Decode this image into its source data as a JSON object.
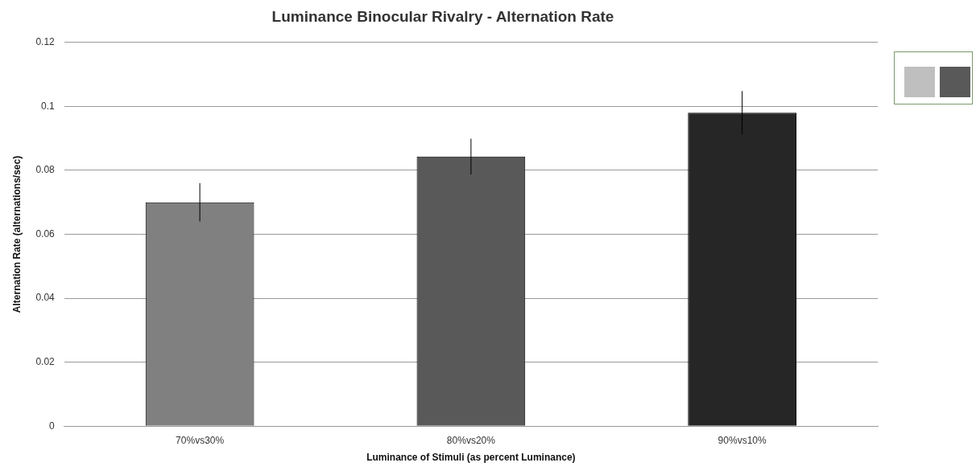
{
  "chart_data": {
    "type": "bar",
    "title": "Luminance Binocular Rivalry - Alternation Rate",
    "xlabel": "Luminance of Stimuli (as percent Luminance)",
    "ylabel": "Alternation Rate (alternations/sec)",
    "categories": [
      "70%vs30%",
      "80%vs20%",
      "90%vs10%"
    ],
    "values": [
      0.07,
      0.0843,
      0.098
    ],
    "colors": [
      "#808080",
      "#595959",
      "#262626"
    ],
    "errors": [
      0.006,
      0.0056,
      0.0068
    ],
    "ylim": [
      0,
      0.12
    ],
    "yticks": [
      0,
      0.02,
      0.04,
      0.06,
      0.08,
      0.1,
      0.12
    ],
    "grid": "y",
    "legend": false
  }
}
